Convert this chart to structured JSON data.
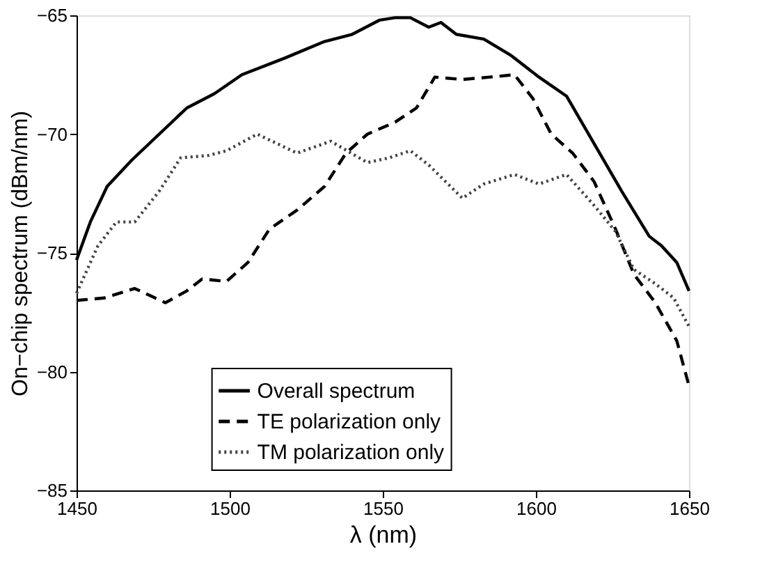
{
  "chart_data": {
    "type": "line",
    "xlabel": "λ (nm)",
    "ylabel": "On−chip spectrum (dBm/nm)",
    "xlim": [
      1450,
      1650
    ],
    "xticks": [
      1450,
      1500,
      1550,
      1600,
      1650
    ],
    "ylim": [
      -85,
      -65
    ],
    "yticks": [
      -85,
      -80,
      -75,
      -70,
      -65
    ],
    "grid": false,
    "legend": "bottom",
    "series": [
      {
        "name": "Overall spectrum",
        "color": "#000000",
        "line_style": "solid",
        "x": [
          1450,
          1454.5,
          1460,
          1468,
          1477,
          1486,
          1495,
          1504,
          1518,
          1531,
          1540,
          1549,
          1554,
          1559,
          1565,
          1569,
          1574,
          1583,
          1592,
          1601,
          1610,
          1619,
          1628,
          1637,
          1641,
          1646,
          1650
        ],
        "values": [
          -75.3,
          -73.7,
          -72.2,
          -71.1,
          -70.0,
          -68.9,
          -68.3,
          -67.5,
          -66.8,
          -66.1,
          -65.8,
          -65.2,
          -65.1,
          -65.1,
          -65.5,
          -65.3,
          -65.8,
          -66.0,
          -66.7,
          -67.6,
          -68.4,
          -70.4,
          -72.4,
          -74.3,
          -74.7,
          -75.4,
          -76.6
        ]
      },
      {
        "name": "TE polarization only",
        "color": "#000000",
        "line_style": "dashed",
        "x": [
          1450,
          1459,
          1469,
          1479,
          1486,
          1491,
          1499,
          1506,
          1513,
          1522,
          1531,
          1538,
          1545,
          1554,
          1561,
          1567,
          1576,
          1585,
          1593,
          1599,
          1605,
          1612,
          1619,
          1626,
          1632,
          1639,
          1646,
          1650
        ],
        "values": [
          -77.0,
          -76.9,
          -76.5,
          -77.1,
          -76.6,
          -76.1,
          -76.2,
          -75.4,
          -74.0,
          -73.2,
          -72.2,
          -70.8,
          -70.0,
          -69.5,
          -68.9,
          -67.6,
          -67.7,
          -67.6,
          -67.5,
          -68.5,
          -70.0,
          -70.8,
          -72.0,
          -74.0,
          -75.9,
          -77.1,
          -78.7,
          -80.6
        ]
      },
      {
        "name": "TM polarization only",
        "color": "#444444",
        "line_style": "dotted",
        "x": [
          1450,
          1457,
          1463,
          1469,
          1477,
          1484,
          1493,
          1499,
          1509,
          1522,
          1533,
          1545,
          1552,
          1559,
          1565,
          1576,
          1583,
          1593,
          1601,
          1610,
          1619,
          1626,
          1632,
          1639,
          1645,
          1650
        ],
        "values": [
          -76.7,
          -74.7,
          -73.7,
          -73.7,
          -72.4,
          -71.0,
          -70.9,
          -70.7,
          -70.0,
          -70.8,
          -70.3,
          -71.2,
          -71.0,
          -70.7,
          -71.3,
          -72.7,
          -72.1,
          -71.7,
          -72.1,
          -71.7,
          -73.0,
          -74.1,
          -75.7,
          -76.3,
          -76.9,
          -78.1
        ]
      }
    ]
  }
}
